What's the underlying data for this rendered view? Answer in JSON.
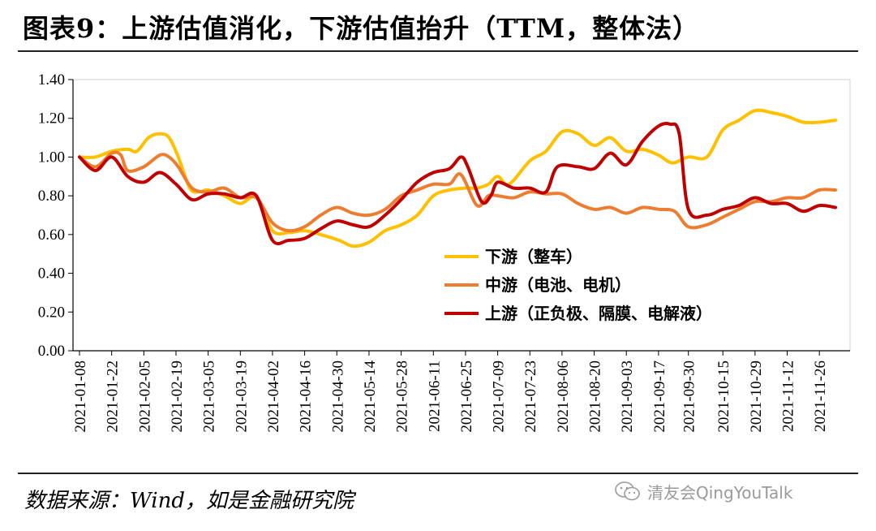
{
  "title": "图表9：上游估值消化，下游估值抬升（TTM，整体法）",
  "source": "数据来源：Wind，如是金融研究院",
  "watermark": "清友会QingYouTalk",
  "icon": "wechat-icon",
  "chart_data": {
    "type": "line",
    "title": "图表9：上游估值消化，下游估值抬升（TTM，整体法）",
    "xlabel": "",
    "ylabel": "",
    "ylim": [
      0,
      1.4
    ],
    "yticks": [
      "0.00",
      "0.20",
      "0.40",
      "0.60",
      "0.80",
      "1.00",
      "1.20",
      "1.40"
    ],
    "grid": false,
    "legend_position": "center-right",
    "x_start": "2021-01-08",
    "x_end": "2021-12-03",
    "x_tick_labels": [
      "2021-01-08",
      "2021-01-22",
      "2021-02-05",
      "2021-02-19",
      "2021-03-05",
      "2021-03-19",
      "2021-04-02",
      "2021-04-16",
      "2021-04-30",
      "2021-05-14",
      "2021-05-28",
      "2021-06-11",
      "2021-06-25",
      "2021-07-09",
      "2021-07-23",
      "2021-08-06",
      "2021-08-20",
      "2021-09-03",
      "2021-09-17",
      "2021-09-30",
      "2021-10-15",
      "2021-10-29",
      "2021-11-12",
      "2021-11-26"
    ],
    "series": [
      {
        "name": "下游（整车）",
        "color": "#FFC000",
        "points": [
          [
            "2021-01-08",
            1.0
          ],
          [
            "2021-01-15",
            1.0
          ],
          [
            "2021-01-22",
            1.03
          ],
          [
            "2021-01-29",
            1.04
          ],
          [
            "2021-02-02",
            1.03
          ],
          [
            "2021-02-07",
            1.1
          ],
          [
            "2021-02-12",
            1.12
          ],
          [
            "2021-02-16",
            1.1
          ],
          [
            "2021-02-20",
            1.0
          ],
          [
            "2021-02-25",
            0.84
          ],
          [
            "2021-03-01",
            0.82
          ],
          [
            "2021-03-05",
            0.83
          ],
          [
            "2021-03-12",
            0.8
          ],
          [
            "2021-03-19",
            0.76
          ],
          [
            "2021-03-26",
            0.79
          ],
          [
            "2021-04-02",
            0.62
          ],
          [
            "2021-04-09",
            0.61
          ],
          [
            "2021-04-16",
            0.62
          ],
          [
            "2021-04-23",
            0.6
          ],
          [
            "2021-05-01",
            0.57
          ],
          [
            "2021-05-07",
            0.54
          ],
          [
            "2021-05-14",
            0.56
          ],
          [
            "2021-05-21",
            0.62
          ],
          [
            "2021-05-28",
            0.65
          ],
          [
            "2021-06-04",
            0.7
          ],
          [
            "2021-06-11",
            0.8
          ],
          [
            "2021-06-18",
            0.83
          ],
          [
            "2021-06-25",
            0.84
          ],
          [
            "2021-06-30",
            0.84
          ],
          [
            "2021-07-05",
            0.86
          ],
          [
            "2021-07-09",
            0.9
          ],
          [
            "2021-07-14",
            0.86
          ],
          [
            "2021-07-23",
            0.98
          ],
          [
            "2021-07-30",
            1.03
          ],
          [
            "2021-08-06",
            1.13
          ],
          [
            "2021-08-13",
            1.12
          ],
          [
            "2021-08-20",
            1.06
          ],
          [
            "2021-08-27",
            1.1
          ],
          [
            "2021-09-03",
            1.03
          ],
          [
            "2021-09-10",
            1.04
          ],
          [
            "2021-09-17",
            1.01
          ],
          [
            "2021-09-23",
            0.97
          ],
          [
            "2021-09-30",
            1.0
          ],
          [
            "2021-10-08",
            1.0
          ],
          [
            "2021-10-15",
            1.14
          ],
          [
            "2021-10-22",
            1.19
          ],
          [
            "2021-10-29",
            1.24
          ],
          [
            "2021-11-05",
            1.23
          ],
          [
            "2021-11-12",
            1.21
          ],
          [
            "2021-11-19",
            1.18
          ],
          [
            "2021-11-26",
            1.18
          ],
          [
            "2021-12-03",
            1.19
          ]
        ]
      },
      {
        "name": "中游（电池、电机）",
        "color": "#ED7D31",
        "points": [
          [
            "2021-01-08",
            1.0
          ],
          [
            "2021-01-15",
            0.95
          ],
          [
            "2021-01-22",
            1.02
          ],
          [
            "2021-01-26",
            1.01
          ],
          [
            "2021-01-29",
            0.93
          ],
          [
            "2021-02-05",
            0.95
          ],
          [
            "2021-02-12",
            1.01
          ],
          [
            "2021-02-16",
            1.0
          ],
          [
            "2021-02-20",
            0.95
          ],
          [
            "2021-02-26",
            0.84
          ],
          [
            "2021-03-05",
            0.82
          ],
          [
            "2021-03-12",
            0.84
          ],
          [
            "2021-03-19",
            0.79
          ],
          [
            "2021-03-26",
            0.79
          ],
          [
            "2021-04-02",
            0.66
          ],
          [
            "2021-04-09",
            0.62
          ],
          [
            "2021-04-16",
            0.64
          ],
          [
            "2021-04-23",
            0.7
          ],
          [
            "2021-04-30",
            0.74
          ],
          [
            "2021-05-07",
            0.71
          ],
          [
            "2021-05-14",
            0.7
          ],
          [
            "2021-05-21",
            0.73
          ],
          [
            "2021-05-28",
            0.8
          ],
          [
            "2021-06-04",
            0.83
          ],
          [
            "2021-06-11",
            0.86
          ],
          [
            "2021-06-18",
            0.86
          ],
          [
            "2021-06-23",
            0.91
          ],
          [
            "2021-06-30",
            0.75
          ],
          [
            "2021-07-05",
            0.8
          ],
          [
            "2021-07-09",
            0.8
          ],
          [
            "2021-07-16",
            0.79
          ],
          [
            "2021-07-23",
            0.82
          ],
          [
            "2021-07-30",
            0.81
          ],
          [
            "2021-08-06",
            0.81
          ],
          [
            "2021-08-13",
            0.76
          ],
          [
            "2021-08-20",
            0.73
          ],
          [
            "2021-08-27",
            0.74
          ],
          [
            "2021-09-03",
            0.71
          ],
          [
            "2021-09-10",
            0.74
          ],
          [
            "2021-09-17",
            0.73
          ],
          [
            "2021-09-24",
            0.72
          ],
          [
            "2021-09-30",
            0.64
          ],
          [
            "2021-10-08",
            0.65
          ],
          [
            "2021-10-15",
            0.69
          ],
          [
            "2021-10-22",
            0.73
          ],
          [
            "2021-10-29",
            0.77
          ],
          [
            "2021-11-05",
            0.77
          ],
          [
            "2021-11-12",
            0.79
          ],
          [
            "2021-11-19",
            0.79
          ],
          [
            "2021-11-26",
            0.83
          ],
          [
            "2021-12-03",
            0.83
          ]
        ]
      },
      {
        "name": "上游（正负极、隔膜、电解液）",
        "color": "#C00000",
        "points": [
          [
            "2021-01-08",
            1.0
          ],
          [
            "2021-01-15",
            0.93
          ],
          [
            "2021-01-22",
            1.0
          ],
          [
            "2021-01-29",
            0.9
          ],
          [
            "2021-02-05",
            0.87
          ],
          [
            "2021-02-12",
            0.92
          ],
          [
            "2021-02-19",
            0.86
          ],
          [
            "2021-02-26",
            0.78
          ],
          [
            "2021-03-05",
            0.81
          ],
          [
            "2021-03-12",
            0.81
          ],
          [
            "2021-03-19",
            0.79
          ],
          [
            "2021-03-26",
            0.8
          ],
          [
            "2021-04-02",
            0.57
          ],
          [
            "2021-04-09",
            0.57
          ],
          [
            "2021-04-16",
            0.58
          ],
          [
            "2021-04-23",
            0.63
          ],
          [
            "2021-04-30",
            0.67
          ],
          [
            "2021-05-07",
            0.65
          ],
          [
            "2021-05-14",
            0.64
          ],
          [
            "2021-05-21",
            0.7
          ],
          [
            "2021-05-28",
            0.78
          ],
          [
            "2021-06-04",
            0.87
          ],
          [
            "2021-06-11",
            0.92
          ],
          [
            "2021-06-18",
            0.94
          ],
          [
            "2021-06-23",
            1.0
          ],
          [
            "2021-06-26",
            0.95
          ],
          [
            "2021-07-02",
            0.77
          ],
          [
            "2021-07-06",
            0.8
          ],
          [
            "2021-07-09",
            0.87
          ],
          [
            "2021-07-16",
            0.84
          ],
          [
            "2021-07-23",
            0.84
          ],
          [
            "2021-07-30",
            0.82
          ],
          [
            "2021-08-04",
            0.95
          ],
          [
            "2021-08-13",
            0.95
          ],
          [
            "2021-08-20",
            0.94
          ],
          [
            "2021-08-27",
            1.02
          ],
          [
            "2021-09-03",
            0.96
          ],
          [
            "2021-09-10",
            1.08
          ],
          [
            "2021-09-17",
            1.16
          ],
          [
            "2021-09-22",
            1.17
          ],
          [
            "2021-09-26",
            1.12
          ],
          [
            "2021-09-30",
            0.73
          ],
          [
            "2021-10-08",
            0.7
          ],
          [
            "2021-10-15",
            0.73
          ],
          [
            "2021-10-22",
            0.75
          ],
          [
            "2021-10-29",
            0.79
          ],
          [
            "2021-11-05",
            0.76
          ],
          [
            "2021-11-12",
            0.76
          ],
          [
            "2021-11-19",
            0.72
          ],
          [
            "2021-11-26",
            0.75
          ],
          [
            "2021-12-03",
            0.74
          ]
        ]
      }
    ]
  }
}
